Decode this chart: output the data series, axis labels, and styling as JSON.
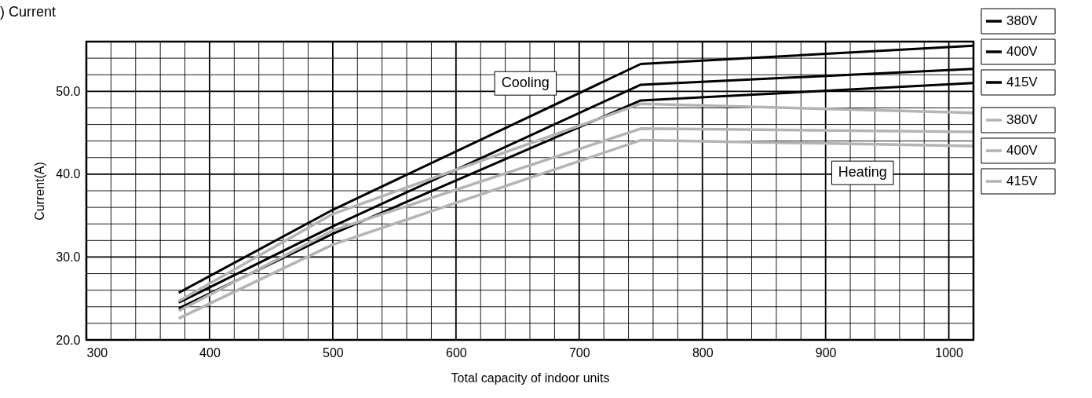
{
  "chart_data": {
    "type": "line",
    "title": ") Current",
    "xlabel": "Total capacity of indoor units",
    "ylabel": "Current(A)",
    "x": [
      375,
      500,
      750,
      1020
    ],
    "series": [
      {
        "name": "380V",
        "color": "#000000",
        "values": [
          25.7,
          35.7,
          53.3,
          55.5
        ]
      },
      {
        "name": "400V",
        "color": "#000000",
        "values": [
          24.5,
          33.7,
          50.8,
          52.7
        ]
      },
      {
        "name": "415V",
        "color": "#000000",
        "values": [
          23.8,
          32.8,
          48.9,
          51.0
        ]
      },
      {
        "name": "380V",
        "color": "#b4b4b4",
        "values": [
          24.7,
          35.2,
          48.5,
          47.4
        ]
      },
      {
        "name": "400V",
        "color": "#b4b4b4",
        "values": [
          23.5,
          33.2,
          45.5,
          45.1
        ]
      },
      {
        "name": "415V",
        "color": "#b4b4b4",
        "values": [
          22.6,
          31.5,
          44.1,
          43.4
        ]
      }
    ],
    "annotations": [
      "Cooling",
      "Heating"
    ],
    "xlim": [
      300,
      1020
    ],
    "xticks": [
      300,
      400,
      500,
      600,
      700,
      800,
      900,
      1000
    ],
    "ylim": [
      20,
      56
    ],
    "yticks": [
      {
        "value": 20,
        "label": "20.0"
      },
      {
        "value": 30,
        "label": "30.0"
      },
      {
        "value": 40,
        "label": "40.0"
      },
      {
        "value": 50,
        "label": "50.0"
      }
    ],
    "grid": true,
    "legend": "right",
    "marker": "none",
    "line_style": "solid"
  }
}
